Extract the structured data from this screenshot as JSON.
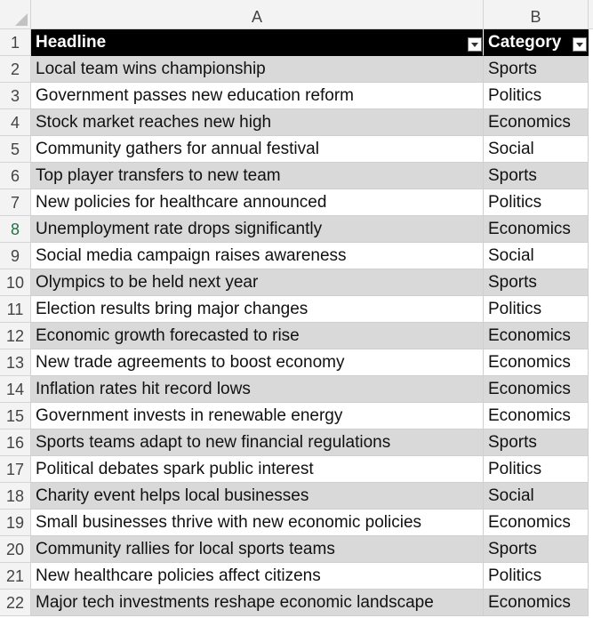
{
  "sheet": {
    "columns": [
      "A",
      "B"
    ],
    "header_row": {
      "row_number": "1",
      "headline": "Headline",
      "category": "Category"
    },
    "rows": [
      {
        "n": "2",
        "headline": "Local team wins championship",
        "category": "Sports"
      },
      {
        "n": "3",
        "headline": "Government passes new education reform",
        "category": "Politics"
      },
      {
        "n": "4",
        "headline": "Stock market reaches new high",
        "category": "Economics"
      },
      {
        "n": "5",
        "headline": "Community gathers for annual festival",
        "category": "Social"
      },
      {
        "n": "6",
        "headline": "Top player transfers to new team",
        "category": "Sports"
      },
      {
        "n": "7",
        "headline": "New policies for healthcare announced",
        "category": "Politics"
      },
      {
        "n": "8",
        "headline": "Unemployment rate drops significantly",
        "category": "Economics"
      },
      {
        "n": "9",
        "headline": "Social media campaign raises awareness",
        "category": "Social"
      },
      {
        "n": "10",
        "headline": "Olympics to be held next year",
        "category": "Sports"
      },
      {
        "n": "11",
        "headline": "Election results bring major changes",
        "category": "Politics"
      },
      {
        "n": "12",
        "headline": "Economic growth forecasted to rise",
        "category": "Economics"
      },
      {
        "n": "13",
        "headline": "New trade agreements to boost economy",
        "category": "Economics"
      },
      {
        "n": "14",
        "headline": "Inflation rates hit record lows",
        "category": "Economics"
      },
      {
        "n": "15",
        "headline": "Government invests in renewable energy",
        "category": "Economics"
      },
      {
        "n": "16",
        "headline": "Sports teams adapt to new financial regulations",
        "category": "Sports"
      },
      {
        "n": "17",
        "headline": "Political debates spark public interest",
        "category": "Politics"
      },
      {
        "n": "18",
        "headline": "Charity event helps local businesses",
        "category": "Social"
      },
      {
        "n": "19",
        "headline": "Small businesses thrive with new economic policies",
        "category": "Economics"
      },
      {
        "n": "20",
        "headline": "Community rallies for local sports teams",
        "category": "Sports"
      },
      {
        "n": "21",
        "headline": "New healthcare policies affect citizens",
        "category": "Politics"
      },
      {
        "n": "22",
        "headline": "Major tech investments reshape economic landscape",
        "category": "Economics"
      }
    ]
  },
  "icons": {
    "filter": "filter-dropdown-icon",
    "select_all": "select-all-triangle-icon"
  },
  "colors": {
    "header_bg": "#000000",
    "header_text": "#ffffff",
    "band": "#d9d9d9",
    "active_row_number": "#1e7145"
  }
}
